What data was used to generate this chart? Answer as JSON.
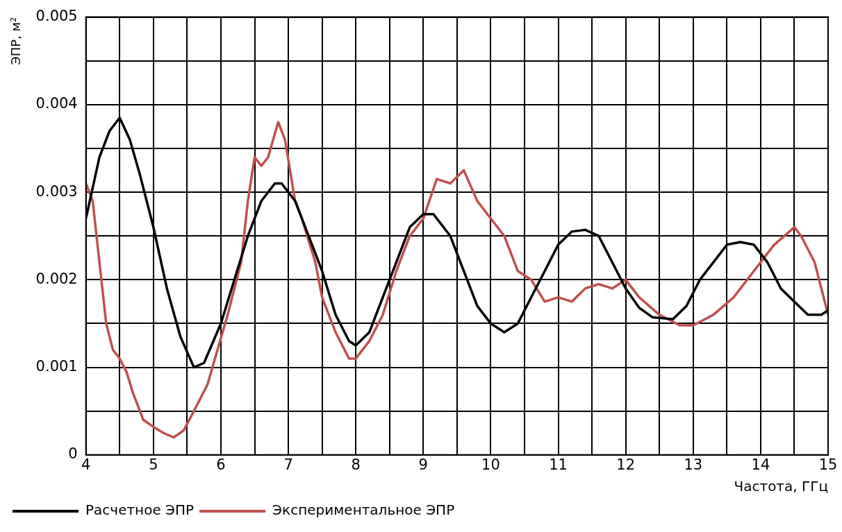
{
  "chart_data": {
    "type": "line",
    "xlabel": "Частота, ГГц",
    "ylabel": "ЭПР, м²",
    "xlim": [
      4,
      15
    ],
    "xticks": [
      4,
      {
        "value": 4.5,
        "label": null
      },
      5,
      {
        "value": 5.5,
        "label": null
      },
      6,
      {
        "value": 6.5,
        "label": null
      },
      7,
      {
        "value": 7.5,
        "label": null
      },
      8,
      {
        "value": 8.5,
        "label": null
      },
      9,
      {
        "value": 9.5,
        "label": null
      },
      10,
      {
        "value": 10.5,
        "label": null
      },
      11,
      {
        "value": 11.5,
        "label": null
      },
      12,
      {
        "value": 12.5,
        "label": null
      },
      13,
      {
        "value": 13.5,
        "label": null
      },
      14,
      {
        "value": 14.5,
        "label": null
      },
      15
    ],
    "ylim": [
      0,
      0.005
    ],
    "yticks": [
      0,
      {
        "value": 0.0005,
        "label": null
      },
      0.001,
      {
        "value": 0.0015,
        "label": null
      },
      0.002,
      {
        "value": 0.0025,
        "label": null
      },
      0.003,
      {
        "value": 0.0035,
        "label": null
      },
      0.004,
      {
        "value": 0.0045,
        "label": null
      },
      0.005
    ],
    "grid": true,
    "legend": "bottom left",
    "marker": "none",
    "line_style": "solid",
    "series": [
      {
        "name": "Расчетное ЭПР",
        "color": "#000000",
        "x": [
          4,
          4.2,
          4.35,
          4.5,
          4.65,
          4.8,
          5,
          5.2,
          5.4,
          5.6,
          5.75,
          6,
          6.2,
          6.4,
          6.6,
          6.8,
          6.9,
          7.1,
          7.3,
          7.5,
          7.7,
          7.9,
          8,
          8.2,
          8.4,
          8.6,
          8.8,
          9,
          9.15,
          9.4,
          9.6,
          9.8,
          10,
          10.2,
          10.4,
          10.6,
          10.8,
          11,
          11.2,
          11.4,
          11.6,
          11.8,
          12,
          12.2,
          12.4,
          12.7,
          12.9,
          13.1,
          13.3,
          13.5,
          13.7,
          13.9,
          14.1,
          14.3,
          14.5,
          14.7,
          14.9,
          15
        ],
        "values": [
          0.0027,
          0.0034,
          0.0037,
          0.00385,
          0.0036,
          0.0032,
          0.0026,
          0.0019,
          0.00135,
          0.001,
          0.00105,
          0.0015,
          0.002,
          0.0025,
          0.0029,
          0.0031,
          0.0031,
          0.0029,
          0.0025,
          0.0021,
          0.0016,
          0.0013,
          0.00125,
          0.0014,
          0.0018,
          0.0022,
          0.0026,
          0.00275,
          0.00275,
          0.0025,
          0.0021,
          0.0017,
          0.0015,
          0.0014,
          0.0015,
          0.0018,
          0.0021,
          0.0024,
          0.00255,
          0.00257,
          0.0025,
          0.0022,
          0.0019,
          0.00168,
          0.00157,
          0.00155,
          0.0017,
          0.002,
          0.0022,
          0.0024,
          0.00243,
          0.0024,
          0.0022,
          0.0019,
          0.00175,
          0.0016,
          0.0016,
          0.00165
        ]
      },
      {
        "name": "Экспериментальное ЭПР",
        "color": "#c0504d",
        "x": [
          4,
          4.1,
          4.2,
          4.3,
          4.4,
          4.5,
          4.6,
          4.7,
          4.85,
          5,
          5.15,
          5.3,
          5.45,
          5.6,
          5.8,
          5.95,
          6.1,
          6.2,
          6.3,
          6.4,
          6.5,
          6.6,
          6.7,
          6.85,
          6.95,
          7.1,
          7.2,
          7.4,
          7.5,
          7.7,
          7.9,
          8,
          8.2,
          8.4,
          8.6,
          8.8,
          9,
          9.2,
          9.4,
          9.6,
          9.8,
          10,
          10.2,
          10.4,
          10.6,
          10.8,
          11,
          11.2,
          11.4,
          11.6,
          11.8,
          12,
          12.2,
          12.5,
          12.8,
          13,
          13.3,
          13.6,
          13.9,
          14.2,
          14.5,
          14.6,
          14.8,
          15
        ],
        "values": [
          0.0031,
          0.0029,
          0.0022,
          0.0015,
          0.0012,
          0.0011,
          0.00095,
          0.0007,
          0.0004,
          0.00032,
          0.00025,
          0.0002,
          0.00028,
          0.0005,
          0.0008,
          0.0012,
          0.0016,
          0.0019,
          0.0022,
          0.0029,
          0.0034,
          0.0033,
          0.0034,
          0.0038,
          0.0036,
          0.0029,
          0.0027,
          0.0022,
          0.0018,
          0.0014,
          0.0011,
          0.0011,
          0.0013,
          0.0016,
          0.0021,
          0.0025,
          0.0027,
          0.00315,
          0.0031,
          0.00325,
          0.0029,
          0.0027,
          0.0025,
          0.0021,
          0.002,
          0.00175,
          0.0018,
          0.00175,
          0.0019,
          0.00195,
          0.0019,
          0.002,
          0.0018,
          0.0016,
          0.00148,
          0.00148,
          0.0016,
          0.0018,
          0.0021,
          0.0024,
          0.0026,
          0.0025,
          0.0022,
          0.0016
        ]
      }
    ]
  }
}
